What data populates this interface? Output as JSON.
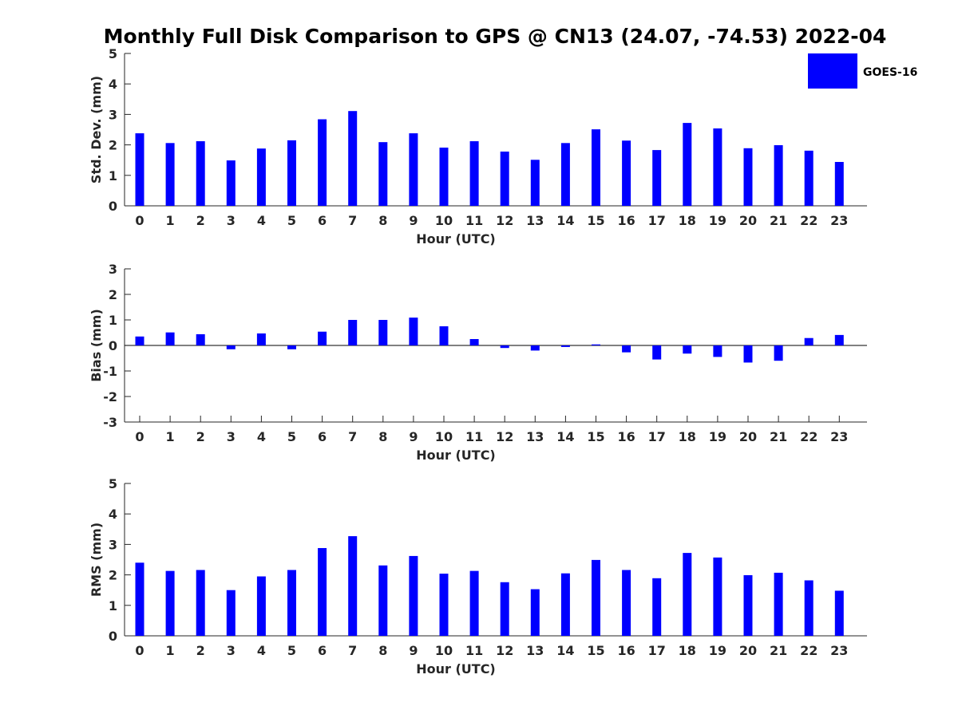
{
  "title": "Monthly Full Disk Comparison to GPS @ CN13 (24.07, -74.53) 2022-04",
  "legend": {
    "label": "GOES-16",
    "color": "#0000ff",
    "placement": "top-right"
  },
  "bar_color": "#0000ff",
  "chart_data": [
    {
      "type": "bar",
      "name": "std",
      "xlabel": "Hour (UTC)",
      "ylabel": "Std. Dev. (mm)",
      "ylim": [
        0,
        5
      ],
      "yticks": [
        0,
        1,
        2,
        3,
        4,
        5
      ],
      "categories": [
        "0",
        "1",
        "2",
        "3",
        "4",
        "5",
        "6",
        "7",
        "8",
        "9",
        "10",
        "11",
        "12",
        "13",
        "14",
        "15",
        "16",
        "17",
        "18",
        "19",
        "20",
        "21",
        "22",
        "23"
      ],
      "series": [
        {
          "name": "GOES-16",
          "values": [
            2.38,
            2.06,
            2.12,
            1.49,
            1.88,
            2.15,
            2.84,
            3.11,
            2.09,
            2.38,
            1.91,
            2.12,
            1.78,
            1.51,
            2.06,
            2.51,
            2.14,
            1.83,
            2.72,
            2.54,
            1.89,
            1.99,
            1.81,
            1.44
          ]
        }
      ],
      "grid": false
    },
    {
      "type": "bar",
      "name": "bias",
      "xlabel": "Hour (UTC)",
      "ylabel": "Bias (mm)",
      "ylim": [
        -3,
        3
      ],
      "yticks": [
        -3,
        -2,
        -1,
        0,
        1,
        2,
        3
      ],
      "categories": [
        "0",
        "1",
        "2",
        "3",
        "4",
        "5",
        "6",
        "7",
        "8",
        "9",
        "10",
        "11",
        "12",
        "13",
        "14",
        "15",
        "16",
        "17",
        "18",
        "19",
        "20",
        "21",
        "22",
        "23"
      ],
      "series": [
        {
          "name": "GOES-16",
          "values": [
            0.35,
            0.51,
            0.44,
            -0.15,
            0.47,
            -0.15,
            0.54,
            1.0,
            1.0,
            1.09,
            0.75,
            0.25,
            -0.1,
            -0.2,
            -0.06,
            0.04,
            -0.27,
            -0.55,
            -0.32,
            -0.45,
            -0.67,
            -0.6,
            0.29,
            0.41
          ]
        }
      ],
      "zero_line": true,
      "grid": false
    },
    {
      "type": "bar",
      "name": "rms",
      "xlabel": "Hour (UTC)",
      "ylabel": "RMS (mm)",
      "ylim": [
        0,
        5
      ],
      "yticks": [
        0,
        1,
        2,
        3,
        4,
        5
      ],
      "categories": [
        "0",
        "1",
        "2",
        "3",
        "4",
        "5",
        "6",
        "7",
        "8",
        "9",
        "10",
        "11",
        "12",
        "13",
        "14",
        "15",
        "16",
        "17",
        "18",
        "19",
        "20",
        "21",
        "22",
        "23"
      ],
      "series": [
        {
          "name": "GOES-16",
          "values": [
            2.4,
            2.13,
            2.16,
            1.5,
            1.95,
            2.16,
            2.88,
            3.27,
            2.31,
            2.62,
            2.04,
            2.13,
            1.76,
            1.53,
            2.05,
            2.49,
            2.16,
            1.89,
            2.72,
            2.57,
            1.99,
            2.07,
            1.82,
            1.48
          ]
        }
      ],
      "grid": false
    }
  ]
}
